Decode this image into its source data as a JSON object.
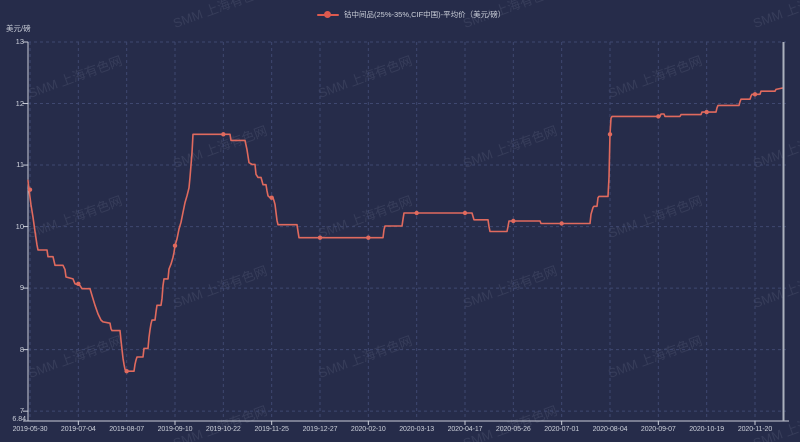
{
  "colors": {
    "background": "#262c4a",
    "line": "#e06a5e",
    "marker": "#dd5a4f",
    "grid": "#3f4870",
    "axis": "#c9cdd8",
    "axis_text": "#ccd0da",
    "watermark_text": "rgba(205,212,240,0.10)",
    "crosshair": "#aab0bc"
  },
  "legend": {
    "label": "钴中间品(25%-35%,CIF中国)-平均价（美元/磅）"
  },
  "y_axis": {
    "unit_label": "美元/磅",
    "tick_labels": [
      "13",
      "12",
      "11",
      "10",
      "9",
      "8",
      "7"
    ],
    "min_label": "6.84"
  },
  "x_axis": {
    "tick_labels": [
      "2019-05-30",
      "2019-07-04",
      "2019-08-07",
      "2019-09-10",
      "2019-10-22",
      "2019-11-25",
      "2019-12-27",
      "2020-02-10",
      "2020-03-13",
      "2020-04-17",
      "2020-05-26",
      "2020-07-01",
      "2020-08-04",
      "2020-09-07",
      "2020-10-19",
      "2020-11-20"
    ]
  },
  "watermark": {
    "text": "SMM 上海有色网"
  },
  "chart_data": {
    "type": "line",
    "title": "",
    "xlabel": "",
    "ylabel": "美元/磅",
    "ylim": [
      6.84,
      13
    ],
    "y_ticks": [
      7,
      8,
      9,
      10,
      11,
      12,
      13
    ],
    "x_tick_labels": [
      "2019-05-30",
      "2019-07-04",
      "2019-08-07",
      "2019-09-10",
      "2019-10-22",
      "2019-11-25",
      "2019-12-27",
      "2020-02-10",
      "2020-03-13",
      "2020-04-17",
      "2020-05-26",
      "2020-07-01",
      "2020-08-04",
      "2020-09-07",
      "2020-10-19",
      "2020-11-20"
    ],
    "legend_position": "top-center",
    "grid": "dashed",
    "x_unit": "plot_px_28_to_786",
    "series": [
      {
        "name": "钴中间品(25%-35%,CIF中国)-平均价（美元/磅）",
        "color": "#e06a5e",
        "points": [
          [
            28,
            10.75
          ],
          [
            29,
            10.6
          ],
          [
            31,
            10.35
          ],
          [
            33,
            10.15
          ],
          [
            35,
            9.92
          ],
          [
            37,
            9.7
          ],
          [
            38,
            9.62
          ],
          [
            47,
            9.62
          ],
          [
            48,
            9.51
          ],
          [
            53,
            9.51
          ],
          [
            55,
            9.37
          ],
          [
            63,
            9.37
          ],
          [
            65,
            9.3
          ],
          [
            66,
            9.18
          ],
          [
            73,
            9.15
          ],
          [
            75,
            9.07
          ],
          [
            80,
            9.04
          ],
          [
            82,
            8.99
          ],
          [
            90,
            8.99
          ],
          [
            92,
            8.88
          ],
          [
            95,
            8.72
          ],
          [
            98,
            8.58
          ],
          [
            101,
            8.48
          ],
          [
            103,
            8.45
          ],
          [
            110,
            8.43
          ],
          [
            111,
            8.34
          ],
          [
            112,
            8.31
          ],
          [
            120,
            8.31
          ],
          [
            121,
            8.15
          ],
          [
            122,
            8.0
          ],
          [
            123,
            7.86
          ],
          [
            124,
            7.76
          ],
          [
            125,
            7.68
          ],
          [
            126,
            7.65
          ],
          [
            134,
            7.65
          ],
          [
            135,
            7.76
          ],
          [
            136,
            7.83
          ],
          [
            137,
            7.88
          ],
          [
            143,
            7.88
          ],
          [
            144,
            8.02
          ],
          [
            148,
            8.02
          ],
          [
            149,
            8.2
          ],
          [
            150,
            8.32
          ],
          [
            151,
            8.42
          ],
          [
            152,
            8.48
          ],
          [
            155,
            8.48
          ],
          [
            156,
            8.61
          ],
          [
            157,
            8.72
          ],
          [
            161,
            8.72
          ],
          [
            162,
            8.83
          ],
          [
            163,
            9.04
          ],
          [
            164,
            9.15
          ],
          [
            168,
            9.15
          ],
          [
            169,
            9.31
          ],
          [
            171,
            9.39
          ],
          [
            173,
            9.5
          ],
          [
            174,
            9.58
          ],
          [
            175,
            9.69
          ],
          [
            177,
            9.8
          ],
          [
            179,
            9.96
          ],
          [
            181,
            10.07
          ],
          [
            183,
            10.23
          ],
          [
            185,
            10.39
          ],
          [
            187,
            10.5
          ],
          [
            189,
            10.63
          ],
          [
            190,
            10.8
          ],
          [
            191,
            11.0
          ],
          [
            192,
            11.2
          ],
          [
            193,
            11.5
          ],
          [
            230,
            11.5
          ],
          [
            231,
            11.4
          ],
          [
            245,
            11.4
          ],
          [
            247,
            11.25
          ],
          [
            249,
            11.04
          ],
          [
            252,
            11.01
          ],
          [
            255,
            11.01
          ],
          [
            256,
            10.85
          ],
          [
            258,
            10.8
          ],
          [
            261,
            10.8
          ],
          [
            262,
            10.74
          ],
          [
            263,
            10.68
          ],
          [
            266,
            10.68
          ],
          [
            267,
            10.58
          ],
          [
            268,
            10.5
          ],
          [
            270,
            10.47
          ],
          [
            273,
            10.47
          ],
          [
            274,
            10.42
          ],
          [
            275,
            10.36
          ],
          [
            276,
            10.23
          ],
          [
            277,
            10.1
          ],
          [
            278,
            10.03
          ],
          [
            297,
            10.03
          ],
          [
            298,
            9.92
          ],
          [
            299,
            9.82
          ],
          [
            383,
            9.82
          ],
          [
            384,
            9.95
          ],
          [
            385,
            10.01
          ],
          [
            402,
            10.01
          ],
          [
            403,
            10.12
          ],
          [
            404,
            10.22
          ],
          [
            472,
            10.22
          ],
          [
            474,
            10.11
          ],
          [
            488,
            10.11
          ],
          [
            489,
            10.0
          ],
          [
            490,
            9.92
          ],
          [
            507,
            9.92
          ],
          [
            508,
            10.0
          ],
          [
            509,
            10.09
          ],
          [
            540,
            10.09
          ],
          [
            541,
            10.05
          ],
          [
            590,
            10.05
          ],
          [
            591,
            10.2
          ],
          [
            593,
            10.31
          ],
          [
            594,
            10.33
          ],
          [
            597,
            10.33
          ],
          [
            598,
            10.47
          ],
          [
            599,
            10.49
          ],
          [
            608,
            10.49
          ],
          [
            609,
            10.8
          ],
          [
            610,
            11.5
          ],
          [
            611,
            11.76
          ],
          [
            612,
            11.79
          ],
          [
            660,
            11.79
          ],
          [
            661,
            11.83
          ],
          [
            664,
            11.83
          ],
          [
            665,
            11.79
          ],
          [
            680,
            11.79
          ],
          [
            681,
            11.82
          ],
          [
            701,
            11.82
          ],
          [
            702,
            11.86
          ],
          [
            716,
            11.86
          ],
          [
            717,
            11.93
          ],
          [
            718,
            11.97
          ],
          [
            739,
            11.97
          ],
          [
            740,
            12.03
          ],
          [
            741,
            12.07
          ],
          [
            750,
            12.07
          ],
          [
            751,
            12.12
          ],
          [
            752,
            12.15
          ],
          [
            760,
            12.15
          ],
          [
            761,
            12.2
          ],
          [
            775,
            12.2
          ],
          [
            776,
            12.23
          ],
          [
            782,
            12.25
          ]
        ]
      }
    ]
  }
}
